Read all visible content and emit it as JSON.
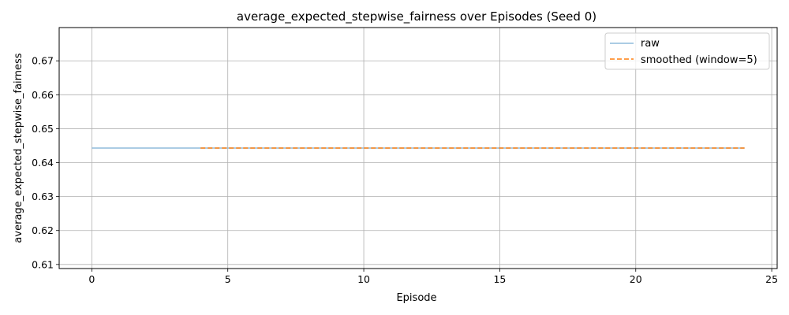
{
  "chart_data": {
    "type": "line",
    "title": "average_expected_stepwise_fairness over Episodes (Seed 0)",
    "xlabel": "Episode",
    "ylabel": "average_expected_stepwise_fairness",
    "xlim": [
      -1.2,
      25.2
    ],
    "ylim": [
      0.6088,
      0.6798
    ],
    "xticks": [
      0,
      5,
      10,
      15,
      20,
      25
    ],
    "xtick_labels": [
      "0",
      "5",
      "10",
      "15",
      "20",
      "25"
    ],
    "yticks": [
      0.61,
      0.62,
      0.63,
      0.64,
      0.65,
      0.66,
      0.67
    ],
    "ytick_labels": [
      "0.61",
      "0.62",
      "0.63",
      "0.64",
      "0.65",
      "0.66",
      "0.67"
    ],
    "grid": true,
    "legend_position": "top-right",
    "series": [
      {
        "name": "raw",
        "style": "solid",
        "color": "#8fbcdc",
        "x": [
          0,
          1,
          2,
          3,
          4,
          5,
          6,
          7,
          8,
          9,
          10,
          11,
          12,
          13,
          14,
          15,
          16,
          17,
          18,
          19,
          20,
          21,
          22,
          23,
          24
        ],
        "y": [
          0.6443,
          0.6443,
          0.6443,
          0.6443,
          0.6443,
          0.6443,
          0.6443,
          0.6443,
          0.6443,
          0.6443,
          0.6443,
          0.6443,
          0.6443,
          0.6443,
          0.6443,
          0.6443,
          0.6443,
          0.6443,
          0.6443,
          0.6443,
          0.6443,
          0.6443,
          0.6443,
          0.6443,
          0.6443
        ]
      },
      {
        "name": "smoothed (window=5)",
        "style": "dashed",
        "color": "#ff7f0e",
        "x": [
          4,
          5,
          6,
          7,
          8,
          9,
          10,
          11,
          12,
          13,
          14,
          15,
          16,
          17,
          18,
          19,
          20,
          21,
          22,
          23,
          24
        ],
        "y": [
          0.6443,
          0.6443,
          0.6443,
          0.6443,
          0.6443,
          0.6443,
          0.6443,
          0.6443,
          0.6443,
          0.6443,
          0.6443,
          0.6443,
          0.6443,
          0.6443,
          0.6443,
          0.6443,
          0.6443,
          0.6443,
          0.6443,
          0.6443,
          0.6443
        ]
      }
    ]
  }
}
